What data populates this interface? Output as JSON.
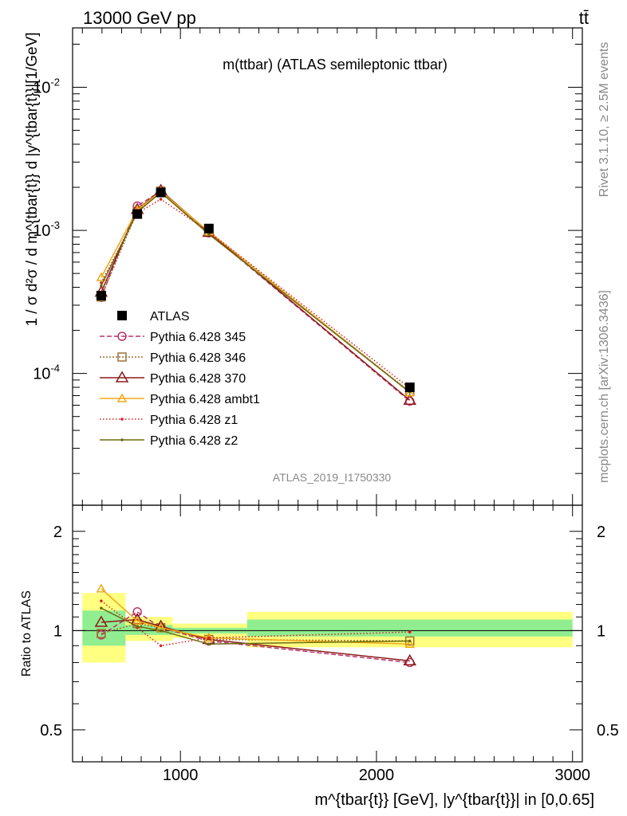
{
  "header": {
    "energy": "13000 GeV pp",
    "process": "tt̄",
    "rivet_label": "Rivet 3.1.10, ≥ 2.5M events",
    "mcplots_label": "mcplots.cern.ch [arXiv:1306.3436]",
    "analysis_label": "ATLAS_2019_I1750330"
  },
  "colors": {
    "ATLAS": "#000000",
    "p345": "#b8336a",
    "p346": "#a07030",
    "p370": "#8b1a1a",
    "ambt1": "#f0a818",
    "z1": "#e02020",
    "z2": "#6b6b10",
    "band_inner": "#90ee90",
    "band_outer": "#ffff80"
  },
  "chart_data": [
    {
      "type": "line",
      "panel": "main",
      "title": "m(ttbar) (ATLAS semileptonic ttbar)",
      "ylabel": "1 / σ d²σ / d m^{tbar{t}} d |y^{tbar{t}}|[1/GeV]",
      "yscale": "log",
      "ylim": [
        1.2e-05,
        0.026
      ],
      "xlim": [
        450,
        3050
      ],
      "ytick_labels": [
        "10^-4",
        "10^-3",
        "10^-2"
      ],
      "bins": [
        [
          500,
          720
        ],
        [
          720,
          840
        ],
        [
          840,
          960
        ],
        [
          960,
          1340
        ],
        [
          1340,
          3000
        ]
      ],
      "x": [
        596,
        780,
        900,
        1145,
        2170
      ],
      "legend": "left-middle",
      "series": [
        {
          "name": "ATLAS",
          "key": "ATLAS",
          "marker": "square",
          "values": [
            0.00035,
            0.0013,
            0.00184,
            0.00103,
            8e-05
          ]
        },
        {
          "name": "Pythia 6.428 345",
          "key": "p345",
          "marker": "circle",
          "dash": "6,3",
          "values": [
            0.00034,
            0.00148,
            0.00188,
            0.00096,
            6.4e-05
          ]
        },
        {
          "name": "Pythia 6.428 346",
          "key": "p346",
          "marker": "square-open",
          "dash": "2,2",
          "values": [
            0.000342,
            0.00136,
            0.00188,
            0.00097,
            7.45e-05
          ]
        },
        {
          "name": "Pythia 6.428 370",
          "key": "p370",
          "marker": "triangle",
          "dash": "",
          "values": [
            0.00037,
            0.0014,
            0.0019,
            0.00097,
            6.5e-05
          ]
        },
        {
          "name": "Pythia 6.428 ambt1",
          "key": "ambt1",
          "marker": "triangle-small",
          "dash": "",
          "values": [
            0.00047,
            0.00139,
            0.00187,
            0.00098,
            7.35e-05
          ]
        },
        {
          "name": "Pythia 6.428 z1",
          "key": "z1",
          "marker": "dot",
          "dash": "1.5,2.5",
          "values": [
            0.00043,
            0.00132,
            0.00165,
            0.00098,
            7.9e-05
          ]
        },
        {
          "name": "Pythia 6.428 z2",
          "key": "z2",
          "marker": "dot",
          "dash": "",
          "values": [
            0.00041,
            0.00134,
            0.00184,
            0.00094,
            7.4e-05
          ]
        }
      ]
    },
    {
      "type": "line",
      "panel": "ratio",
      "ylabel": "Ratio to ATLAS",
      "xlabel": "m^{tbar{t}} [GeV], |y^{tbar{t}}| in [0,0.65]",
      "ylim": [
        0.4,
        2.4
      ],
      "xlim": [
        450,
        3050
      ],
      "ytick_labels": [
        "0.5",
        "1",
        "2"
      ],
      "xtick_labels": [
        "1000",
        "2000",
        "3000"
      ],
      "x": [
        596,
        780,
        900,
        1145,
        2170
      ],
      "bands": {
        "bins": [
          [
            500,
            720
          ],
          [
            720,
            960
          ],
          [
            960,
            1340
          ],
          [
            1340,
            3000
          ]
        ],
        "inner": [
          [
            0.9,
            1.15
          ],
          [
            0.97,
            1.04
          ],
          [
            0.98,
            1.02
          ],
          [
            0.96,
            1.08
          ]
        ],
        "outer": [
          [
            0.8,
            1.3
          ],
          [
            0.93,
            1.1
          ],
          [
            0.95,
            1.05
          ],
          [
            0.89,
            1.14
          ]
        ]
      },
      "series": [
        {
          "key": "p345",
          "values": [
            0.97,
            1.14,
            1.02,
            0.93,
            0.8
          ]
        },
        {
          "key": "p346",
          "values": [
            0.98,
            1.05,
            1.02,
            0.94,
            0.93
          ]
        },
        {
          "key": "p370",
          "values": [
            1.06,
            1.08,
            1.03,
            0.94,
            0.81
          ]
        },
        {
          "key": "ambt1",
          "values": [
            1.34,
            1.07,
            1.02,
            0.95,
            0.91
          ]
        },
        {
          "key": "z1",
          "values": [
            1.23,
            1.02,
            0.9,
            0.95,
            0.99
          ]
        },
        {
          "key": "z2",
          "values": [
            1.17,
            1.03,
            1.0,
            0.91,
            0.93
          ]
        }
      ]
    }
  ]
}
